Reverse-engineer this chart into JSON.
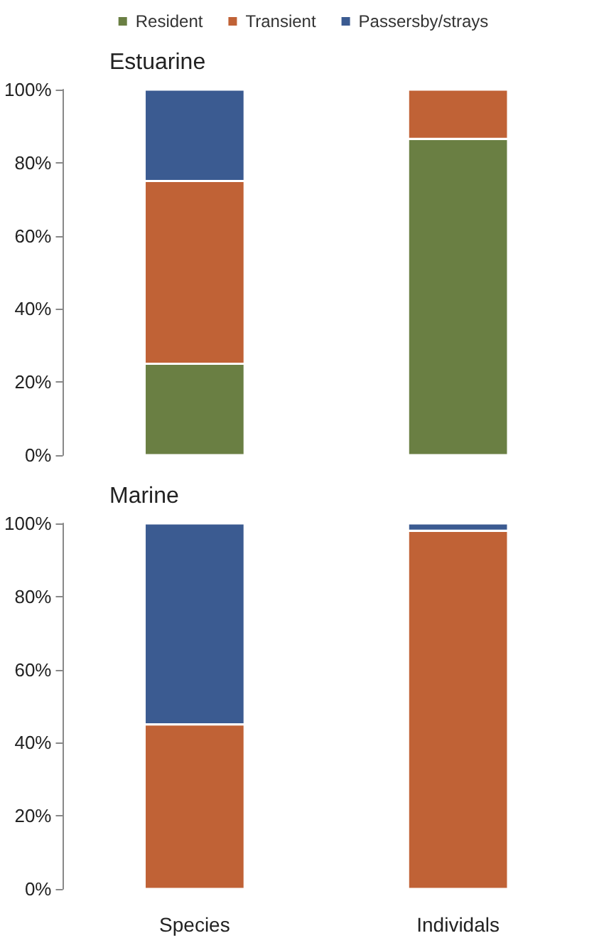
{
  "chart_data": [
    {
      "type": "bar",
      "title": "Estuarine",
      "categories": [
        null,
        null
      ],
      "stacked": true,
      "ylim": [
        0,
        100
      ],
      "yticks": [
        {
          "value": 0,
          "label": "0%"
        },
        {
          "value": 20,
          "label": "20%"
        },
        {
          "value": 40,
          "label": "40%"
        },
        {
          "value": 60,
          "label": "60%"
        },
        {
          "value": 80,
          "label": "80%"
        },
        {
          "value": 100,
          "label": "100%"
        }
      ],
      "grid": false,
      "legend": "top",
      "tick_labels": "y",
      "series": [
        {
          "name": "Resident",
          "color": "#6a7f43",
          "values": [
            25,
            86.5
          ]
        },
        {
          "name": "Transient",
          "color": "#c06236",
          "values": [
            50,
            13.5
          ]
        },
        {
          "name": "Passersby/strays",
          "color": "#3b5b91",
          "values": [
            25,
            null
          ]
        }
      ]
    },
    {
      "type": "bar",
      "title": "Marine",
      "categories": [
        "Species",
        "Individals"
      ],
      "stacked": true,
      "ylim": [
        0,
        100
      ],
      "yticks": [
        {
          "value": 0,
          "label": "0%"
        },
        {
          "value": 20,
          "label": "20%"
        },
        {
          "value": 40,
          "label": "40%"
        },
        {
          "value": 60,
          "label": "60%"
        },
        {
          "value": 80,
          "label": "80%"
        },
        {
          "value": 100,
          "label": "100%"
        }
      ],
      "grid": false,
      "legend": false,
      "series": [
        {
          "color": "#c06236",
          "values": [
            45,
            98
          ]
        },
        {
          "color": "#3b5b91",
          "values": [
            55,
            2
          ]
        }
      ]
    }
  ]
}
